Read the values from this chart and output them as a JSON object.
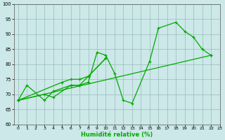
{
  "xlabel": "Humidité relative (%)",
  "background_color": "#cce8e8",
  "grid_color": "#99bbbb",
  "line_color": "#00aa00",
  "xlim": [
    -0.5,
    23
  ],
  "ylim": [
    60,
    100
  ],
  "yticks": [
    60,
    65,
    70,
    75,
    80,
    85,
    90,
    95,
    100
  ],
  "xticks": [
    0,
    1,
    2,
    3,
    4,
    5,
    6,
    7,
    8,
    9,
    10,
    11,
    12,
    13,
    14,
    15,
    16,
    17,
    18,
    19,
    20,
    21,
    22,
    23
  ],
  "line1_x": [
    0,
    1,
    3,
    4,
    6,
    7,
    8,
    9,
    10,
    11,
    12,
    13,
    15,
    16,
    18,
    19,
    20,
    21,
    22
  ],
  "line1_y": [
    68,
    73,
    68,
    71,
    73,
    73,
    74,
    84,
    83,
    77,
    68,
    67,
    81,
    92,
    94,
    91,
    89,
    85,
    83
  ],
  "line2_x": [
    0,
    22
  ],
  "line2_y": [
    68,
    83
  ],
  "line3_x": [
    0,
    3,
    4,
    6,
    7,
    8,
    10
  ],
  "line3_y": [
    68,
    70,
    69,
    73,
    73,
    76,
    82
  ],
  "line4_x": [
    0,
    5,
    6,
    7,
    8,
    10
  ],
  "line4_y": [
    68,
    74,
    75,
    75,
    76,
    82
  ]
}
